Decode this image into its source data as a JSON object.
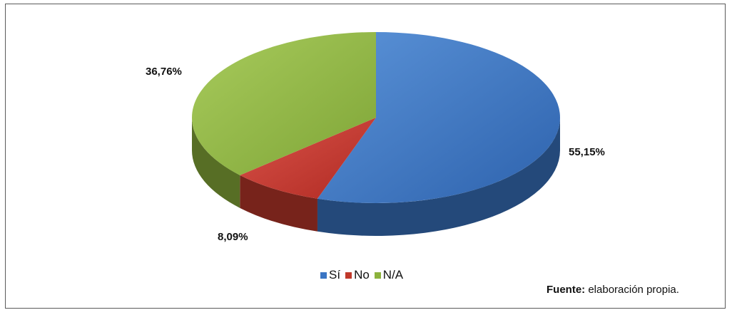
{
  "chart_data": {
    "type": "pie",
    "style": "3d",
    "categories": [
      "Sí",
      "No",
      "N/A"
    ],
    "values": [
      55.15,
      8.09,
      36.76
    ],
    "value_labels": [
      "55,15%",
      "8,09%",
      "36,76%"
    ],
    "colors": [
      "#3a75c4",
      "#c0392b",
      "#8cb23c"
    ],
    "legend_position": "bottom",
    "title": ""
  },
  "source": {
    "label": "Fuente:",
    "text": " elaboración propia."
  }
}
